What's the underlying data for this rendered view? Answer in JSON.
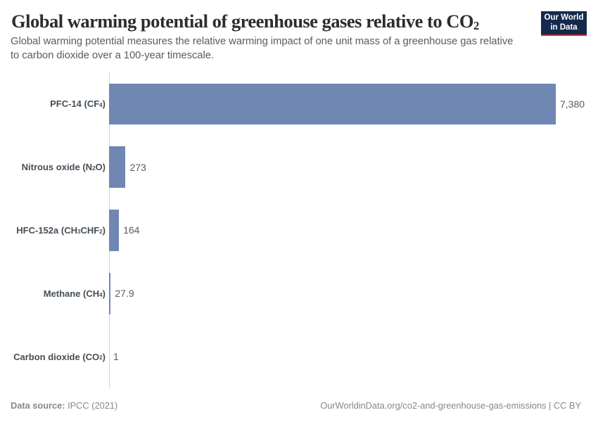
{
  "header": {
    "title": "Global warming potential of greenhouse gases relative to CO₂",
    "subtitle": "Global warming potential measures the relative warming impact of one unit mass of a greenhouse gas relative to carbon dioxide over a 100-year timescale."
  },
  "logo": {
    "line1": "Our World",
    "line2": "in Data",
    "background_color": "#142A4D",
    "accent_color": "#E0231E"
  },
  "chart_data": {
    "type": "bar",
    "orientation": "horizontal",
    "title": "Global warming potential of greenhouse gases relative to CO₂",
    "categories": [
      "PFC-14 (CF₄)",
      "Nitrous oxide (N₂O)",
      "HFC-152a (CH₃CHF₂)",
      "Methane (CH₄)",
      "Carbon dioxide (CO₂)"
    ],
    "values": [
      7380,
      273,
      164,
      27.9,
      1
    ],
    "value_labels": [
      "7,380",
      "273",
      "164",
      "27.9",
      "1"
    ],
    "xlim": [
      0,
      7380
    ],
    "bar_color": "#6F87B2",
    "axis_color": "#d4d4d4",
    "grid": false,
    "legend": false
  },
  "footer": {
    "source_label": "Data source:",
    "source_value": "IPCC (2021)",
    "right_text": "OurWorldinData.org/co2-and-greenhouse-gas-emissions | CC BY"
  }
}
